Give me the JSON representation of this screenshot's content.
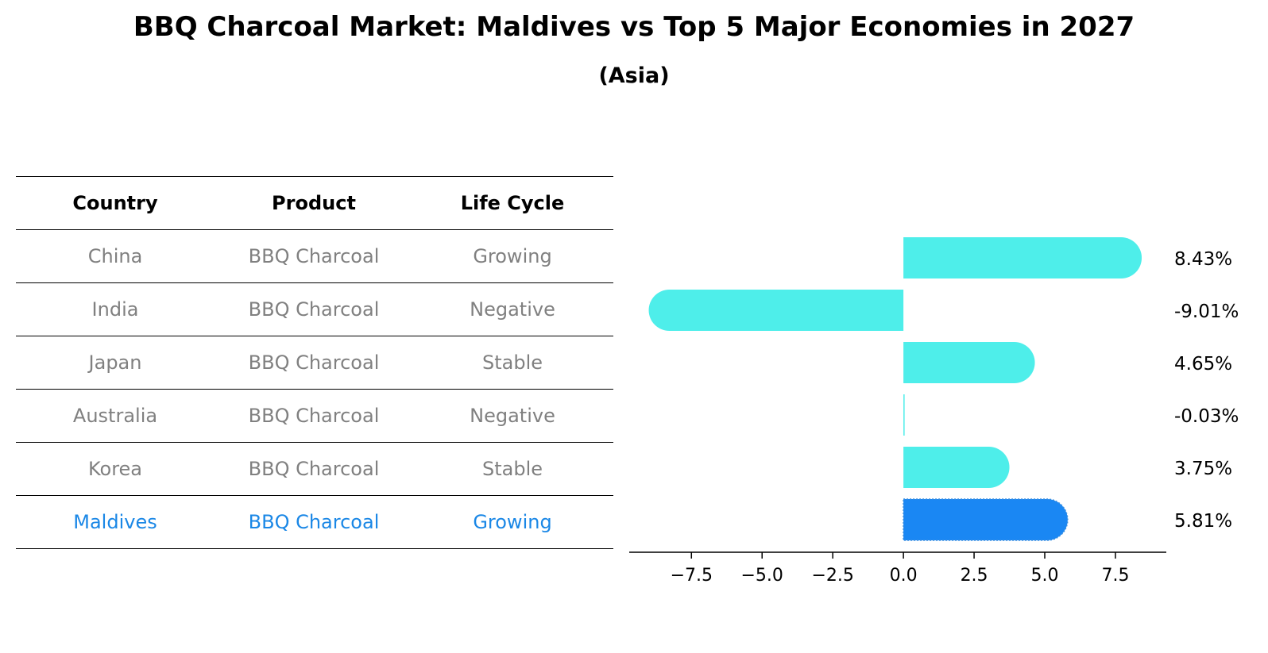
{
  "title": "BBQ Charcoal Market: Maldives vs Top 5 Major Economies in 2027",
  "subtitle": "(Asia)",
  "table": {
    "headers": [
      "Country",
      "Product",
      "Life Cycle"
    ],
    "rows": [
      {
        "country": "China",
        "product": "BBQ Charcoal",
        "life_cycle": "Growing"
      },
      {
        "country": "India",
        "product": "BBQ Charcoal",
        "life_cycle": "Negative"
      },
      {
        "country": "Japan",
        "product": "BBQ Charcoal",
        "life_cycle": "Stable"
      },
      {
        "country": "Australia",
        "product": "BBQ Charcoal",
        "life_cycle": "Negative"
      },
      {
        "country": "Korea",
        "product": "BBQ Charcoal",
        "life_cycle": "Stable"
      },
      {
        "country": "Maldives",
        "product": "BBQ Charcoal",
        "life_cycle": "Growing"
      }
    ],
    "highlight_row": 5
  },
  "chart_data": {
    "type": "bar",
    "orientation": "horizontal",
    "categories": [
      "China",
      "India",
      "Japan",
      "Australia",
      "Korea",
      "Maldives"
    ],
    "values": [
      8.43,
      -9.01,
      4.65,
      -0.03,
      3.75,
      5.81
    ],
    "value_labels": [
      "8.43%",
      "-9.01%",
      "4.65%",
      "-0.03%",
      "3.75%",
      "5.81%"
    ],
    "xlim": [
      -9.7,
      9.3
    ],
    "xticks": [
      -7.5,
      -5.0,
      -2.5,
      0.0,
      2.5,
      5.0,
      7.5
    ],
    "xtick_labels": [
      "−7.5",
      "−5.0",
      "−2.5",
      "0.0",
      "2.5",
      "5.0",
      "7.5"
    ],
    "colors": {
      "default": "#4eeeea",
      "highlight": "#1a87f3",
      "axis": "#000000",
      "label": "#000000"
    },
    "highlight_index": 5
  }
}
